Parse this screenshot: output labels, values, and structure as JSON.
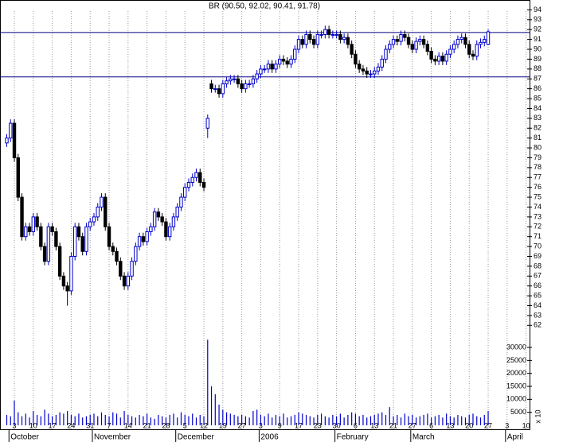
{
  "chart_data": {
    "type": "candlestick",
    "title": "BR (90.50, 92.02, 90.41, 91.78)",
    "volume_label": "x 10",
    "up_color": "#0000cc",
    "down_color": "#000000",
    "volume_color": "#0000cc",
    "line_color": "#000080",
    "hlines": [
      91.7,
      87.2
    ],
    "categories": [
      null,
      null,
      "3",
      null,
      null,
      null,
      null,
      "10",
      null,
      null,
      null,
      null,
      "17",
      null,
      null,
      null,
      null,
      "24",
      null,
      null,
      null,
      null,
      "31",
      null,
      null,
      null,
      null,
      "7",
      null,
      null,
      null,
      null,
      "14",
      null,
      null,
      null,
      null,
      "21",
      null,
      null,
      null,
      null,
      "28",
      null,
      null,
      null,
      null,
      "5",
      null,
      null,
      null,
      null,
      "12",
      null,
      null,
      null,
      null,
      "19",
      null,
      null,
      null,
      null,
      "27",
      null,
      null,
      null,
      null,
      "3",
      null,
      null,
      null,
      null,
      "9",
      null,
      null,
      null,
      null,
      "17",
      null,
      null,
      null,
      null,
      "23",
      null,
      null,
      null,
      null,
      "30",
      null,
      null,
      null,
      null,
      "6",
      null,
      null,
      null,
      null,
      "13",
      null,
      null,
      null,
      null,
      "21",
      null,
      null,
      null,
      null,
      "27",
      null,
      null,
      null,
      null,
      "6",
      null,
      null,
      null,
      null,
      "13",
      null,
      null,
      null,
      null,
      "20",
      null,
      null,
      null,
      null,
      "27",
      null,
      null,
      null,
      null,
      "3",
      null,
      null,
      null,
      null,
      "10"
    ],
    "months": [
      {
        "label": "October",
        "index": 1
      },
      {
        "label": "November",
        "index": 23
      },
      {
        "label": "December",
        "index": 45
      },
      {
        "label": "2006",
        "index": 67
      },
      {
        "label": "February",
        "index": 87
      },
      {
        "label": "March",
        "index": 107
      },
      {
        "label": "April",
        "index": 132
      }
    ],
    "open": [
      80.5,
      81,
      82.5,
      79,
      75,
      71,
      72,
      71.5,
      73,
      72,
      70,
      68.5,
      72,
      71.5,
      70,
      67,
      66,
      65.5,
      69,
      72,
      71,
      69.5,
      72,
      72.5,
      73,
      74,
      75,
      72,
      70,
      69.5,
      68.5,
      67,
      66,
      67,
      68.5,
      70,
      71,
      70.5,
      71.5,
      72,
      73.5,
      73,
      72.5,
      71,
      72,
      73,
      74,
      75,
      76,
      76.5,
      77,
      77.5,
      76.5,
      82,
      86.5,
      86,
      86,
      85.5,
      86.5,
      86.8,
      87,
      87,
      86.5,
      86,
      86.5,
      86.5,
      87,
      87.5,
      88,
      88,
      88.5,
      88,
      88.5,
      89,
      88.8,
      88.5,
      89,
      90,
      91,
      90.5,
      91.5,
      91,
      90.5,
      91.5,
      91.5,
      92,
      91.5,
      91.5,
      91.5,
      91,
      91.2,
      90.5,
      89.5,
      88.5,
      88,
      87.8,
      87.5,
      87.5,
      87.8,
      88.2,
      89,
      90,
      90.5,
      91,
      90.8,
      91.5,
      91.2,
      90.5,
      90,
      90.8,
      91,
      90.5,
      89.8,
      89,
      88.8,
      89.3,
      88.8,
      89.5,
      90,
      90.5,
      91,
      91.2,
      90.5,
      89.5,
      89.3,
      90.5,
      90.7,
      90.5,
      null,
      null,
      null,
      null,
      null,
      null,
      null,
      null,
      null,
      null
    ],
    "high": [
      81.4,
      82.9,
      82.9,
      79.4,
      75.4,
      72.4,
      72.4,
      73.4,
      73.4,
      72.4,
      70.4,
      72.4,
      72.4,
      71.9,
      70.4,
      67.4,
      66.4,
      69.4,
      72.4,
      72.4,
      71.4,
      72.4,
      72.9,
      73.4,
      74.4,
      75.4,
      75.4,
      72.4,
      70.4,
      69.9,
      68.9,
      67.4,
      67.4,
      68.9,
      70.4,
      71.4,
      71.4,
      71.9,
      72.4,
      73.9,
      73.9,
      73.4,
      72.9,
      72.4,
      73.4,
      74.4,
      75.4,
      76.4,
      76.9,
      77.4,
      77.9,
      77.9,
      76.9,
      83.4,
      86.9,
      86.4,
      86.4,
      86.9,
      87.2,
      87.4,
      87.4,
      87.4,
      86.9,
      86.9,
      86.9,
      87.4,
      87.9,
      88.4,
      88.4,
      88.9,
      88.9,
      88.9,
      89.4,
      89.4,
      89.2,
      89.4,
      90.4,
      91.4,
      91.4,
      91.9,
      91.9,
      91.4,
      91.9,
      91.9,
      92.4,
      92.4,
      91.9,
      91.9,
      91.9,
      91.6,
      91.6,
      90.9,
      89.9,
      88.9,
      88.4,
      88.2,
      87.9,
      88.2,
      88.6,
      89.4,
      90.4,
      90.9,
      91.4,
      91.4,
      91.9,
      91.9,
      91.6,
      90.9,
      91.2,
      91.4,
      91.4,
      90.9,
      90.2,
      89.4,
      89.7,
      89.7,
      89.9,
      90.4,
      90.9,
      91.4,
      91.6,
      91.6,
      90.9,
      89.9,
      90.9,
      91.1,
      91.4,
      92.02,
      null,
      null,
      null,
      null,
      null,
      null,
      null,
      null,
      null,
      null
    ],
    "low": [
      80.1,
      80.6,
      78.6,
      74.6,
      70.6,
      70.6,
      71.1,
      71.1,
      71.6,
      69.6,
      68.1,
      68.1,
      71.1,
      69.6,
      66.6,
      65.6,
      64,
      65.1,
      68.6,
      70.6,
      69.1,
      69.1,
      71.6,
      72.1,
      72.6,
      73.6,
      71.6,
      69.6,
      69.1,
      68.1,
      66.6,
      65.6,
      65.6,
      66.6,
      68.1,
      69.6,
      70.1,
      70.1,
      71.1,
      71.6,
      72.6,
      72.1,
      70.6,
      70.6,
      71.6,
      72.6,
      73.6,
      74.6,
      75.6,
      76.1,
      76.6,
      76.1,
      75.6,
      81,
      85.6,
      85.6,
      85.1,
      85.1,
      86.1,
      86.4,
      86.6,
      86.1,
      85.6,
      85.6,
      86.1,
      86.1,
      86.6,
      87.1,
      87.6,
      87.6,
      87.6,
      87.6,
      88.1,
      88.4,
      88.1,
      88.1,
      88.6,
      89.6,
      90.1,
      90.1,
      90.6,
      90.1,
      90.1,
      91.1,
      91.1,
      91.1,
      91.1,
      91.1,
      90.6,
      90.6,
      90.1,
      89.1,
      88.1,
      87.6,
      87.4,
      87.1,
      87.1,
      87.1,
      87.4,
      87.8,
      88.6,
      89.6,
      90.1,
      90.4,
      90.4,
      90.8,
      90.1,
      89.6,
      89.6,
      90.4,
      90.1,
      89.4,
      88.6,
      88.4,
      88.4,
      88.4,
      88.4,
      89.1,
      89.6,
      90.1,
      90.6,
      90.1,
      89.1,
      88.9,
      88.9,
      90.1,
      90.3,
      90.41,
      null,
      null,
      null,
      null,
      null,
      null,
      null,
      null,
      null,
      null
    ],
    "close": [
      81,
      82.5,
      79,
      75,
      71,
      72,
      71.5,
      73,
      72,
      70,
      68.5,
      72,
      71.5,
      70,
      67,
      66,
      65.5,
      69,
      72,
      71,
      69.5,
      72,
      72.5,
      73,
      74,
      75,
      72,
      70,
      69.5,
      68.5,
      67,
      66,
      67,
      68.5,
      70,
      71,
      70.5,
      71.5,
      72,
      73.5,
      73,
      72.5,
      71,
      72,
      73,
      74,
      75,
      76,
      76.5,
      77,
      77.5,
      76.5,
      76,
      83,
      86,
      86,
      85.5,
      86.5,
      86.8,
      87,
      87,
      86.5,
      86,
      86.5,
      86.5,
      87,
      87.5,
      88,
      88,
      88.5,
      88,
      88.5,
      89,
      88.8,
      88.5,
      89,
      90,
      91,
      90.5,
      91.5,
      91,
      90.5,
      91.5,
      91.5,
      92,
      91.5,
      91.5,
      91.5,
      91,
      91.2,
      90.5,
      89.5,
      88.5,
      88,
      87.8,
      87.5,
      87.5,
      87.8,
      88.2,
      89,
      90,
      90.5,
      91,
      90.8,
      91.5,
      91.2,
      90.5,
      90,
      90.8,
      91,
      90.5,
      89.8,
      89,
      88.8,
      89.3,
      88.8,
      89.5,
      90,
      90.5,
      91,
      91.2,
      90.5,
      89.5,
      89.3,
      90.5,
      90.7,
      91,
      91.78,
      null,
      null,
      null,
      null,
      null,
      null,
      null,
      null,
      null,
      null
    ],
    "volume": [
      4000,
      3500,
      9500,
      5000,
      3500,
      4500,
      3000,
      5500,
      4000,
      3500,
      6000,
      4500,
      3500,
      4000,
      5000,
      4500,
      5500,
      4000,
      3500,
      4500,
      3000,
      3500,
      4000,
      4500,
      3500,
      5000,
      4000,
      3500,
      5000,
      4500,
      3000,
      5500,
      4000,
      3500,
      3000,
      4000,
      3500,
      4500,
      3000,
      2500,
      4000,
      3500,
      3000,
      4000,
      4500,
      3000,
      5000,
      4000,
      3500,
      4500,
      3000,
      4000,
      3500,
      33000,
      15000,
      12000,
      8000,
      6000,
      5000,
      4500,
      4000,
      3500,
      4000,
      3500,
      3000,
      5500,
      6000,
      4000,
      3500,
      4500,
      3000,
      4000,
      3500,
      4500,
      3000,
      3500,
      4000,
      5000,
      4500,
      4000,
      3500,
      3000,
      4000,
      4500,
      3500,
      3000,
      4000,
      3500,
      4500,
      3000,
      4000,
      5000,
      4500,
      3500,
      4000,
      3000,
      3500,
      4000,
      4500,
      5000,
      4000,
      7000,
      3500,
      4000,
      3000,
      4500,
      3500,
      4000,
      3000,
      3500,
      4000,
      4500,
      3000,
      3500,
      4000,
      3000,
      4500,
      3500,
      3000,
      4000,
      3500,
      3000,
      4000,
      4500,
      3500,
      3000,
      4000,
      5500,
      null,
      null,
      null,
      null,
      null,
      null,
      null,
      null,
      null,
      null
    ],
    "ylim": [
      61.3,
      95
    ],
    "yticks": [
      62,
      63,
      64,
      65,
      66,
      67,
      68,
      69,
      70,
      71,
      72,
      73,
      74,
      75,
      76,
      77,
      78,
      79,
      80,
      81,
      82,
      83,
      84,
      85,
      86,
      87,
      88,
      89,
      90,
      91,
      92,
      93,
      94
    ],
    "vlim": [
      0,
      34000
    ],
    "vticks": [
      5000,
      10000,
      15000,
      20000,
      25000,
      30000
    ]
  }
}
